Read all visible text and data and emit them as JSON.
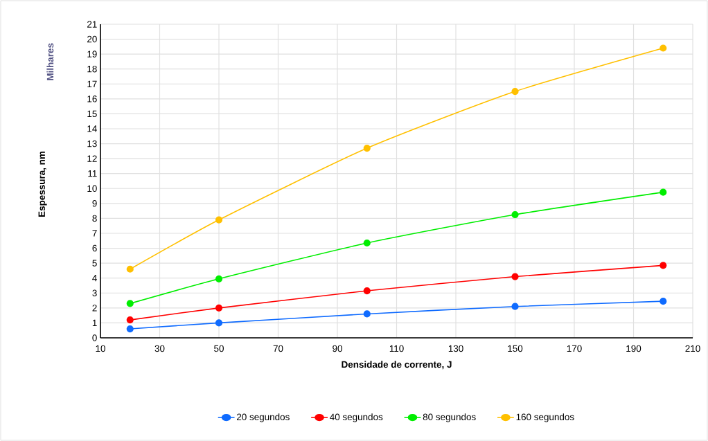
{
  "chart_data": {
    "type": "line",
    "xlabel": "Densidade de corrente, J",
    "ylabel": "Espessura, nm",
    "annotations": [
      "Milhares"
    ],
    "x": [
      20,
      50,
      100,
      150,
      200
    ],
    "xlim": [
      10,
      210
    ],
    "xticks": [
      10,
      30,
      50,
      70,
      90,
      110,
      130,
      150,
      170,
      190,
      210
    ],
    "ylim": [
      0,
      21
    ],
    "yticks": [
      0,
      1,
      2,
      3,
      4,
      5,
      6,
      7,
      8,
      9,
      10,
      11,
      12,
      13,
      14,
      15,
      16,
      17,
      18,
      19,
      20,
      21
    ],
    "series": [
      {
        "name": "20 segundos",
        "color": "#0f6bff",
        "values": [
          0.6,
          1.0,
          1.6,
          2.1,
          2.45
        ]
      },
      {
        "name": "40 segundos",
        "color": "#ff0000",
        "values": [
          1.2,
          2.0,
          3.15,
          4.1,
          4.85
        ]
      },
      {
        "name": "80 segundos",
        "color": "#00ee00",
        "values": [
          2.3,
          3.95,
          6.35,
          8.25,
          9.75
        ]
      },
      {
        "name": "160 segundos",
        "color": "#ffc000",
        "values": [
          4.6,
          7.9,
          12.7,
          16.5,
          19.4
        ]
      }
    ],
    "grid": true,
    "legend": "bottom",
    "marker": "circle"
  }
}
